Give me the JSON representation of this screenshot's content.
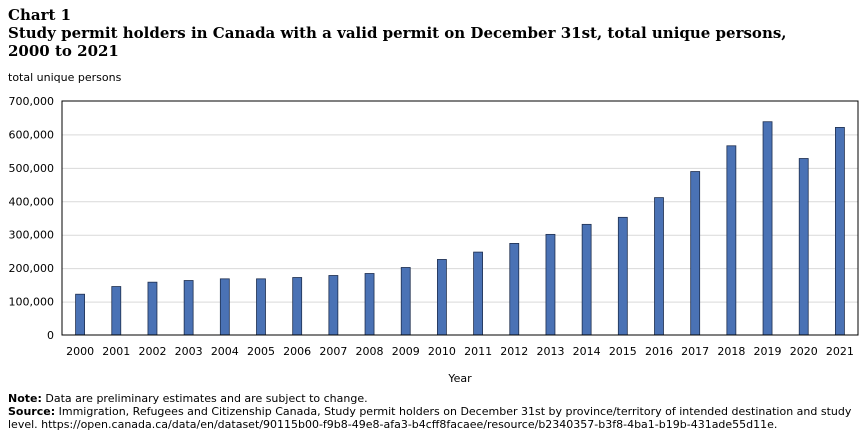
{
  "header": {
    "chart_number": "Chart 1",
    "title_line1": "Study permit holders in Canada with a valid permit on December 31st, total unique persons,",
    "title_line2": "2000 to 2021"
  },
  "chart_data": {
    "type": "bar",
    "title": "Study permit holders in Canada with a valid permit on December 31st, total unique persons, 2000 to 2021",
    "ylabel": "total unique persons",
    "xlabel": "Year",
    "ylim": [
      0,
      700000
    ],
    "yticks": [
      0,
      100000,
      200000,
      300000,
      400000,
      500000,
      600000,
      700000
    ],
    "ytick_labels": [
      "0",
      "100,000",
      "200,000",
      "300,000",
      "400,000",
      "500,000",
      "600,000",
      "700,000"
    ],
    "grid": true,
    "categories": [
      "2000",
      "2001",
      "2002",
      "2003",
      "2004",
      "2005",
      "2006",
      "2007",
      "2008",
      "2009",
      "2010",
      "2011",
      "2012",
      "2013",
      "2014",
      "2015",
      "2016",
      "2017",
      "2018",
      "2019",
      "2020",
      "2021"
    ],
    "values": [
      122000,
      145000,
      158000,
      163000,
      168000,
      168000,
      172000,
      178000,
      184000,
      202000,
      226000,
      248000,
      274000,
      301000,
      331000,
      352000,
      411000,
      489000,
      566000,
      638000,
      528000,
      621000
    ],
    "bar_color": "#4a72b5"
  },
  "notes": {
    "note_label": "Note:",
    "note_text": "Data are preliminary estimates and are subject to change.",
    "source_label": "Source:",
    "source_text": "Immigration, Refugees and Citizenship Canada, Study permit holders on December 31st by province/territory of intended destination and study level. https://open.canada.ca/data/en/dataset/90115b00-f9b8-49e8-afa3-b4cff8facaee/resource/b2340357-b3f8-4ba1-b19b-431ade55d11e."
  }
}
